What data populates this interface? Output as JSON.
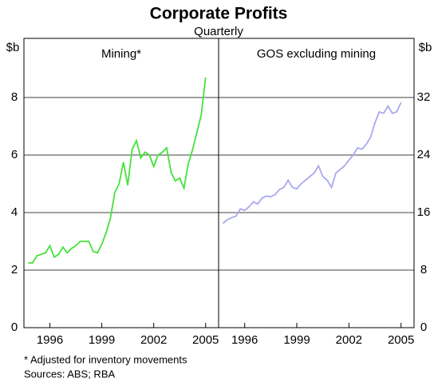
{
  "title": "Corporate Profits",
  "subtitle": "Quarterly",
  "notes": [
    "* Adjusted for inventory movements",
    "Sources: ABS; RBA"
  ],
  "chart_data": [
    {
      "type": "line",
      "title": "Mining*",
      "ylabel": "$b",
      "color": "#44e23a",
      "x": [
        1994.75,
        1995,
        1995.25,
        1995.5,
        1995.75,
        1996,
        1996.25,
        1996.5,
        1996.75,
        1997,
        1997.25,
        1997.5,
        1997.75,
        1998,
        1998.25,
        1998.5,
        1998.75,
        1999,
        1999.25,
        1999.5,
        1999.75,
        2000,
        2000.25,
        2000.5,
        2000.75,
        2001,
        2001.25,
        2001.5,
        2001.75,
        2002,
        2002.25,
        2002.5,
        2002.75,
        2003,
        2003.25,
        2003.5,
        2003.75,
        2004,
        2004.25,
        2004.5,
        2004.75,
        2005
      ],
      "values": [
        2.25,
        2.25,
        2.5,
        2.55,
        2.6,
        2.85,
        2.45,
        2.55,
        2.8,
        2.6,
        2.75,
        2.85,
        3.0,
        3.0,
        3.0,
        2.65,
        2.6,
        2.9,
        3.3,
        3.8,
        4.7,
        5.0,
        5.75,
        4.95,
        6.2,
        6.5,
        5.9,
        6.1,
        6.0,
        5.6,
        6.0,
        6.1,
        6.25,
        5.4,
        5.1,
        5.2,
        4.85,
        5.7,
        6.2,
        6.8,
        7.4,
        8.7
      ],
      "xlim": [
        1994.5,
        2005.75
      ],
      "xticks": [
        1996,
        1999,
        2002,
        2005
      ],
      "ylim": [
        0,
        10
      ],
      "yticks": [
        0,
        2,
        4,
        6,
        8
      ],
      "grid": true
    },
    {
      "type": "line",
      "title": "GOS excluding mining",
      "y2label": "$b",
      "color": "#a9a9ee",
      "x": [
        1994.75,
        1995,
        1995.25,
        1995.5,
        1995.75,
        1996,
        1996.25,
        1996.5,
        1996.75,
        1997,
        1997.25,
        1997.5,
        1997.75,
        1998,
        1998.25,
        1998.5,
        1998.75,
        1999,
        1999.25,
        1999.5,
        1999.75,
        2000,
        2000.25,
        2000.5,
        2000.75,
        2001,
        2001.25,
        2001.5,
        2001.75,
        2002,
        2002.25,
        2002.5,
        2002.75,
        2003,
        2003.25,
        2003.5,
        2003.75,
        2004,
        2004.25,
        2004.5,
        2004.75,
        2005
      ],
      "values": [
        14.5,
        15,
        15.3,
        15.5,
        16.5,
        16.3,
        16.8,
        17.5,
        17.2,
        18,
        18.3,
        18.2,
        18.5,
        19.2,
        19.5,
        20.5,
        19.5,
        19.3,
        20,
        20.5,
        21,
        21.5,
        22.5,
        21,
        20.5,
        19.5,
        21.5,
        22,
        22.5,
        23.3,
        24,
        25,
        24.8,
        25.5,
        26.5,
        28.5,
        30,
        29.8,
        30.8,
        29.8,
        30,
        31.3
      ],
      "xlim": [
        1994.5,
        2005.75
      ],
      "xticks": [
        1996,
        1999,
        2002,
        2005
      ],
      "y2lim": [
        0,
        40
      ],
      "y2ticks": [
        0,
        8,
        16,
        24,
        32
      ],
      "grid": true
    }
  ]
}
